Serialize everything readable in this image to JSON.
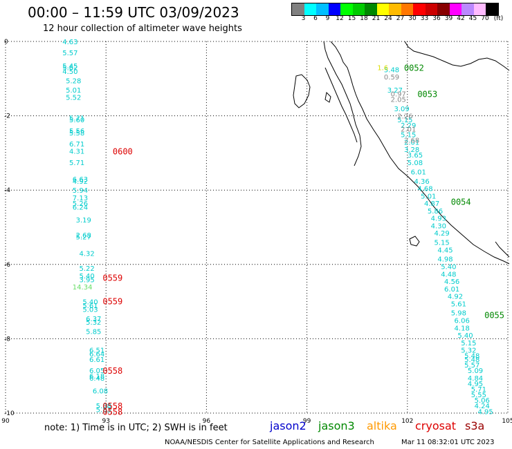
{
  "header": {
    "title": "00:00 – 11:59 UTC 03/09/2023",
    "subtitle": "12 hour collection of altimeter wave heights"
  },
  "legend": {
    "colors": [
      "#808080",
      "#00ffff",
      "#00bfff",
      "#0000ff",
      "#00ff00",
      "#00cc00",
      "#008800",
      "#ffff00",
      "#ffbb00",
      "#ff7700",
      "#ff0000",
      "#cc0000",
      "#880000",
      "#ff00ff",
      "#bb88ff",
      "#ffbbff",
      "#000000"
    ],
    "labels": [
      "3",
      "6",
      "9",
      "12",
      "15",
      "18",
      "21",
      "24",
      "27",
      "30",
      "33",
      "36",
      "39",
      "42",
      "45",
      "70",
      "(ft)"
    ]
  },
  "axes": {
    "x_ticks": [
      "90",
      "93",
      "96",
      "99",
      "102",
      "105"
    ],
    "y_ticks": [
      "0",
      "-2",
      "-4",
      "-6",
      "-8",
      "-10"
    ],
    "x_range": [
      90,
      105
    ],
    "y_range": [
      -10,
      0
    ]
  },
  "tracks": [
    {
      "color": "#00cccc",
      "points": [
        [
          91.7,
          0.0,
          "4.63"
        ],
        [
          91.7,
          -0.3,
          "5.57"
        ],
        [
          91.7,
          -0.65,
          "5.45"
        ],
        [
          91.7,
          -0.7,
          "5.62"
        ],
        [
          91.7,
          -0.8,
          "4.50"
        ],
        [
          91.8,
          -1.05,
          "5.28"
        ],
        [
          91.8,
          -1.3,
          "5.01"
        ],
        [
          91.8,
          -1.5,
          "5.52"
        ],
        [
          91.9,
          -2.05,
          "5.71"
        ],
        [
          91.9,
          -2.1,
          "5.60"
        ],
        [
          91.9,
          -2.4,
          "5.56"
        ],
        [
          91.9,
          -2.45,
          "5.58"
        ],
        [
          91.9,
          -2.75,
          "6.71"
        ],
        [
          91.9,
          -2.95,
          "4.31"
        ],
        [
          91.9,
          -3.25,
          "5.71"
        ],
        [
          92.0,
          -3.7,
          "6.63"
        ],
        [
          92.0,
          -3.75,
          "4.92"
        ],
        [
          92.0,
          -4.0,
          "5.94"
        ],
        [
          92.0,
          -4.2,
          "7.13"
        ],
        [
          92.0,
          -4.35,
          "5.26"
        ],
        [
          92.0,
          -4.45,
          "6.24"
        ],
        [
          92.1,
          -4.8,
          "3.19"
        ],
        [
          92.1,
          -5.2,
          "2.68"
        ],
        [
          92.1,
          -5.25,
          "5.27"
        ],
        [
          92.2,
          -5.7,
          "4.32"
        ],
        [
          92.2,
          -6.1,
          "5.22"
        ],
        [
          92.2,
          -6.3,
          "5.40"
        ],
        [
          92.2,
          -6.4,
          "3.95"
        ],
        [
          92.3,
          -7.0,
          "5.40"
        ],
        [
          92.3,
          -7.1,
          "5.61"
        ],
        [
          92.3,
          -7.2,
          "5.03"
        ],
        [
          92.4,
          -7.45,
          "6.37"
        ],
        [
          92.4,
          -7.55,
          "5.32"
        ],
        [
          92.4,
          -7.8,
          "5.85"
        ],
        [
          92.5,
          -8.3,
          "6.51"
        ],
        [
          92.5,
          -8.4,
          "6.64"
        ],
        [
          92.5,
          -8.55,
          "6.61"
        ],
        [
          92.5,
          -8.85,
          "6.05"
        ],
        [
          92.5,
          -9.0,
          "6.18"
        ],
        [
          92.5,
          -9.05,
          "6.48"
        ],
        [
          92.6,
          -9.4,
          "6.08"
        ],
        [
          92.7,
          -9.8,
          "5.08"
        ],
        [
          92.7,
          -9.9,
          "5.83"
        ]
      ]
    },
    {
      "color": "#66dd66",
      "points": [
        [
          92.0,
          -6.6,
          "14.34"
        ]
      ]
    },
    {
      "color": "#00cccc",
      "points": [
        [
          101.3,
          -0.75,
          "5.48"
        ],
        [
          101.4,
          -1.3,
          "3.27"
        ],
        [
          101.6,
          -1.8,
          "3.09"
        ],
        [
          101.7,
          -2.1,
          "5.15"
        ],
        [
          101.8,
          -2.25,
          "2.29"
        ],
        [
          101.8,
          -2.5,
          "5.15"
        ],
        [
          101.9,
          -2.7,
          "2.01"
        ],
        [
          101.9,
          -2.9,
          "3.28"
        ],
        [
          102.0,
          -3.05,
          "3.65"
        ],
        [
          102.0,
          -3.25,
          "5.08"
        ],
        [
          102.1,
          -3.5,
          "6.01"
        ],
        [
          102.2,
          -3.75,
          "4.36"
        ],
        [
          102.3,
          -3.95,
          "4.68"
        ],
        [
          102.4,
          -4.15,
          "5.01"
        ],
        [
          102.5,
          -4.35,
          "4.87"
        ],
        [
          102.6,
          -4.55,
          "5.86"
        ],
        [
          102.7,
          -4.75,
          "4.93"
        ],
        [
          102.7,
          -4.95,
          "4.30"
        ],
        [
          102.8,
          -5.15,
          "4.29"
        ],
        [
          102.8,
          -5.4,
          "5.15"
        ],
        [
          102.9,
          -5.6,
          "4.45"
        ],
        [
          102.9,
          -5.85,
          "4.98"
        ],
        [
          103.0,
          -6.05,
          "5.40"
        ],
        [
          103.0,
          -6.25,
          "4.48"
        ],
        [
          103.1,
          -6.45,
          "4.56"
        ],
        [
          103.1,
          -6.65,
          "6.01"
        ],
        [
          103.2,
          -6.85,
          "4.92"
        ],
        [
          103.3,
          -7.05,
          "5.61"
        ],
        [
          103.3,
          -7.3,
          "5.98"
        ],
        [
          103.4,
          -7.5,
          "6.06"
        ],
        [
          103.4,
          -7.7,
          "4.18"
        ],
        [
          103.5,
          -7.9,
          "5.40"
        ],
        [
          103.6,
          -8.1,
          "5.15"
        ],
        [
          103.6,
          -8.3,
          "5.32"
        ],
        [
          103.7,
          -8.45,
          "5.48"
        ],
        [
          103.7,
          -8.55,
          "5.48"
        ],
        [
          103.7,
          -8.7,
          "5.57"
        ],
        [
          103.8,
          -8.85,
          "5.09"
        ],
        [
          103.8,
          -9.05,
          "4.84"
        ],
        [
          103.8,
          -9.2,
          "4.95"
        ],
        [
          103.9,
          -9.35,
          "5.71"
        ],
        [
          103.9,
          -9.5,
          "5.55"
        ],
        [
          104.0,
          -9.65,
          "5.06"
        ],
        [
          104.0,
          -9.8,
          "4.24"
        ],
        [
          104.1,
          -9.95,
          "4.95"
        ]
      ]
    },
    {
      "color": "#888888",
      "points": [
        [
          101.3,
          -0.95,
          "0.59"
        ],
        [
          101.5,
          -1.4,
          "0.97"
        ],
        [
          101.5,
          -1.55,
          "2.05"
        ],
        [
          101.7,
          -2.0,
          "2.26"
        ],
        [
          101.8,
          -2.35,
          "2.01"
        ],
        [
          101.9,
          -2.65,
          "2.68"
        ]
      ]
    },
    {
      "color": "#dddd00",
      "points": [
        [
          101.1,
          -0.7,
          "1.6"
        ]
      ]
    }
  ],
  "time_labels": [
    {
      "lon": 93.2,
      "lat": -2.95,
      "text": "0600",
      "color": "#dd0000"
    },
    {
      "lon": 92.9,
      "lat": -6.35,
      "text": "0559",
      "color": "#dd0000"
    },
    {
      "lon": 92.9,
      "lat": -6.98,
      "text": "0559",
      "color": "#dd0000"
    },
    {
      "lon": 92.9,
      "lat": -8.85,
      "text": "0558",
      "color": "#dd0000"
    },
    {
      "lon": 92.9,
      "lat": -9.8,
      "text": "0558",
      "color": "#dd0000"
    },
    {
      "lon": 92.9,
      "lat": -9.95,
      "text": "0558",
      "color": "#dd0000"
    },
    {
      "lon": 101.9,
      "lat": -0.7,
      "text": "0052",
      "color": "#008800"
    },
    {
      "lon": 102.3,
      "lat": -1.4,
      "text": "0053",
      "color": "#008800"
    },
    {
      "lon": 103.3,
      "lat": -4.3,
      "text": "0054",
      "color": "#008800"
    },
    {
      "lon": 104.3,
      "lat": -7.35,
      "text": "0055",
      "color": "#008800"
    }
  ],
  "note": "note: 1) Time is in UTC; 2) SWH is in feet",
  "satellites": [
    {
      "name": "jason2",
      "color": "#0000cc"
    },
    {
      "name": "jason3",
      "color": "#008800"
    },
    {
      "name": "altika",
      "color": "#ff9900"
    },
    {
      "name": "cryosat",
      "color": "#dd0000"
    },
    {
      "name": "s3a",
      "color": "#990000"
    }
  ],
  "footer_left": "NOAA/NESDIS Center for Satellite Applications and Research",
  "footer_right": "Mar 11 08:32:01 UTC 2023"
}
